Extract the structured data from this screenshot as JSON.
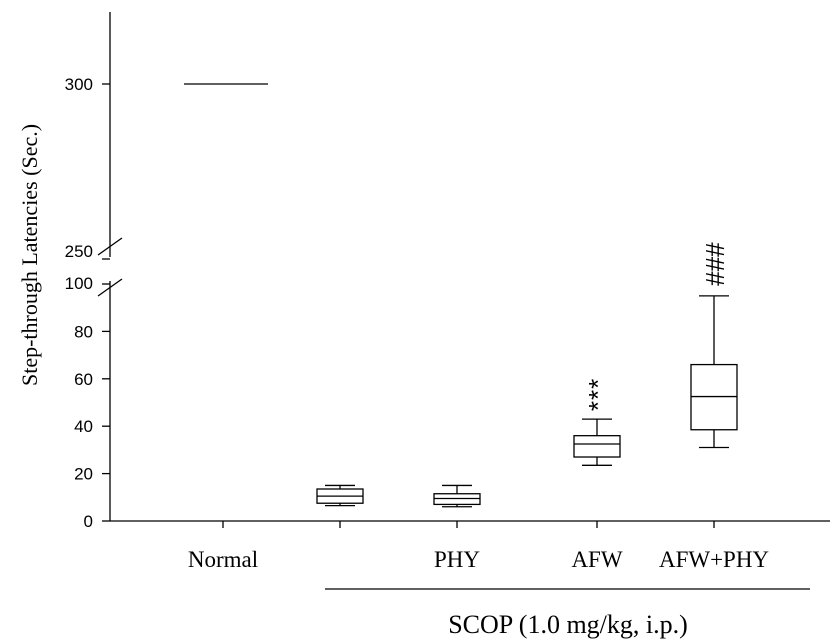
{
  "chart_data": {
    "type": "box",
    "ylabel": "Step-through Latencies (Sec.)",
    "categories": [
      "Normal",
      "",
      "PHY",
      "AFW",
      "AFW+PHY"
    ],
    "y_ticks_lower": [
      0,
      20,
      40,
      60,
      80,
      100
    ],
    "y_ticks_upper": [
      250,
      300
    ],
    "y_axis_break": [
      100,
      250
    ],
    "group_label": "SCOP (1.0 mg/kg, i.p.)",
    "group_spans": [
      "",
      "PHY",
      "AFW",
      "AFW+PHY"
    ],
    "boxes": [
      {
        "category": "Normal",
        "min": 300,
        "q1": 300,
        "median": 300,
        "q3": 300,
        "max": 300
      },
      {
        "category": "",
        "min": 6.5,
        "q1": 7.5,
        "median": 10.5,
        "q3": 13.5,
        "max": 15
      },
      {
        "category": "PHY",
        "min": 6,
        "q1": 7,
        "median": 9.5,
        "q3": 11.5,
        "max": 15
      },
      {
        "category": "AFW",
        "min": 23.5,
        "q1": 27,
        "median": 32.5,
        "q3": 36,
        "max": 43
      },
      {
        "category": "AFW+PHY",
        "min": 31,
        "q1": 38.5,
        "median": 52.5,
        "q3": 66,
        "max": 95
      }
    ],
    "annotations": [
      {
        "category": "AFW",
        "text": "***"
      },
      {
        "category": "AFW+PHY",
        "text": "###"
      }
    ]
  }
}
